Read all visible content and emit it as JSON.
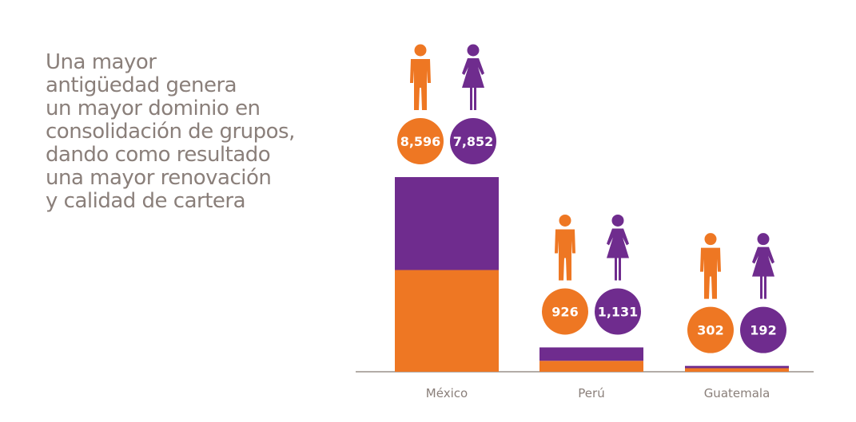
{
  "headline": {
    "lines": [
      "Una mayor",
      "antigüedad genera",
      "un mayor dominio en",
      "consolidación de grupos,",
      "dando como resultado",
      "una mayor renovación",
      "y calidad de cartera"
    ]
  },
  "colors": {
    "men": "#ee7723",
    "women": "#6f2c8e",
    "text": "#8a7f7a",
    "axis": "#9a908b"
  },
  "icons": {
    "men": "man-icon",
    "women": "woman-icon"
  },
  "chart_data": {
    "type": "bar",
    "stacked": true,
    "categories": [
      "México",
      "Perú",
      "Guatemala"
    ],
    "series": [
      {
        "name": "",
        "values": [
          8596,
          926,
          302
        ],
        "color": "#ee7723",
        "icon": "man-icon"
      },
      {
        "name": "",
        "values": [
          7852,
          1131,
          192
        ],
        "color": "#6f2c8e",
        "icon": "woman-icon"
      }
    ],
    "data_labels": [
      [
        "8,596",
        "926",
        "302"
      ],
      [
        "7,852",
        "1,131",
        "192"
      ]
    ],
    "grid": false,
    "legend": "none"
  }
}
